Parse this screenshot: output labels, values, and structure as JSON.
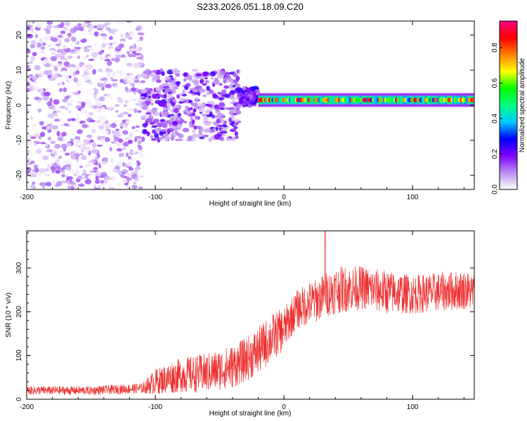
{
  "title": "S233.2026.051.18.09.C20",
  "chart_data": [
    {
      "type": "heatmap",
      "panel": "top",
      "title": "S233.2026.051.18.09.C20",
      "xlabel": "Height of straight line (km)",
      "ylabel": "Frequency (Hz)",
      "xlim": [
        -200,
        148
      ],
      "ylim": [
        -24,
        24
      ],
      "xticks": [
        -200,
        -100,
        0,
        100
      ],
      "xtick_labels": [
        "-200",
        "-100",
        "0",
        "100"
      ],
      "yticks": [
        -20,
        -10,
        0,
        10,
        20
      ],
      "ytick_labels": [
        "-20",
        "-10",
        "0",
        "10",
        "20"
      ],
      "colorbar": {
        "label": "Normalized spectral amplitude",
        "range": [
          0.0,
          0.95
        ],
        "ticks": [
          0.0,
          0.2,
          0.4,
          0.6,
          0.8
        ],
        "tick_labels": [
          "0.0",
          "0.2",
          "0.4",
          "0.6",
          "0.8"
        ],
        "colors": [
          "#ffffff",
          "#b98ef0",
          "#8000ff",
          "#0000ff",
          "#00c8ff",
          "#00ff80",
          "#00ff00",
          "#ffff00",
          "#ff8000",
          "#ff0000",
          "#ff0080"
        ]
      },
      "regions": [
        {
          "x_range": [
            -200,
            -110
          ],
          "freq_range": [
            -24,
            24
          ],
          "amplitude": [
            0.0,
            0.15
          ],
          "description": "scattered noise"
        },
        {
          "x_range": [
            -110,
            -35
          ],
          "freq_range": [
            -10,
            10
          ],
          "amplitude": [
            0.05,
            0.25
          ],
          "description": "broad signal"
        },
        {
          "x_range": [
            -35,
            -20
          ],
          "freq_range": [
            0,
            5
          ],
          "amplitude": [
            0.1,
            0.3
          ]
        },
        {
          "x_range": [
            -20,
            148
          ],
          "freq_center": 1.5,
          "freq_halfwidth": 1.5,
          "amplitude": [
            0.3,
            0.9
          ],
          "description": "narrow strong line"
        }
      ]
    },
    {
      "type": "line",
      "panel": "bottom",
      "xlabel": "Height of straight line (km)",
      "ylabel": "SNR (10 * v/v)",
      "xlim": [
        -200,
        148
      ],
      "ylim": [
        0,
        385
      ],
      "xticks": [
        -200,
        -100,
        0,
        100
      ],
      "xtick_labels": [
        "-200",
        "-100",
        "0",
        "100"
      ],
      "yticks": [
        0,
        100,
        200,
        300
      ],
      "ytick_labels": [
        "0",
        "100",
        "200",
        "300"
      ],
      "series": [
        {
          "name": "SNR",
          "color": "#ee3030",
          "x": [
            -200,
            -150,
            -110,
            -100,
            -80,
            -60,
            -40,
            -30,
            -20,
            -10,
            0,
            5,
            10,
            20,
            25,
            30,
            40,
            60,
            80,
            100,
            120,
            140,
            148
          ],
          "mean": [
            20,
            20,
            25,
            40,
            55,
            60,
            75,
            90,
            110,
            140,
            160,
            185,
            205,
            220,
            225,
            235,
            250,
            255,
            245,
            240,
            245,
            250,
            245
          ],
          "spread": [
            10,
            10,
            12,
            30,
            40,
            45,
            50,
            50,
            55,
            55,
            50,
            45,
            45,
            50,
            50,
            50,
            55,
            50,
            50,
            45,
            45,
            45,
            45
          ],
          "peak": {
            "x": 32,
            "y": 385
          }
        }
      ]
    }
  ]
}
